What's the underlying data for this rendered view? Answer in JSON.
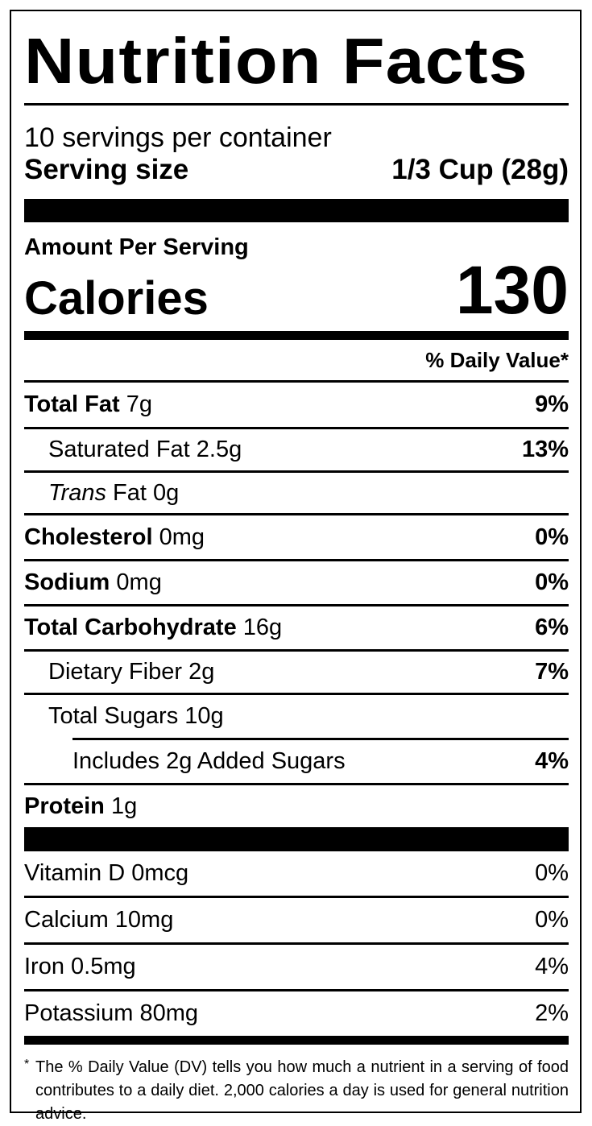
{
  "title": "Nutrition Facts",
  "servings_per_container": "10 servings per container",
  "serving_size": {
    "label": "Serving size",
    "value": "1/3 Cup (28g)"
  },
  "amount_per_serving": "Amount Per Serving",
  "calories": {
    "label": "Calories",
    "value": "130"
  },
  "daily_value_header": "% Daily Value*",
  "nutrients": [
    {
      "name": "Total Fat",
      "amount": "7g",
      "dv": "9%"
    },
    {
      "name": "Saturated Fat",
      "amount": "2.5g",
      "dv": "13%"
    },
    {
      "name": "Trans",
      "name_suffix": "Fat",
      "amount": "0g",
      "dv": ""
    },
    {
      "name": "Cholesterol",
      "amount": "0mg",
      "dv": "0%"
    },
    {
      "name": "Sodium",
      "amount": "0mg",
      "dv": "0%"
    },
    {
      "name": "Total Carbohydrate",
      "amount": "16g",
      "dv": "6%"
    },
    {
      "name": "Dietary Fiber",
      "amount": "2g",
      "dv": "7%"
    },
    {
      "name": "Total Sugars",
      "amount": "10g",
      "dv": ""
    },
    {
      "name": "Includes 2g Added Sugars",
      "dv": "4%"
    },
    {
      "name": "Protein",
      "amount": "1g",
      "dv": ""
    }
  ],
  "vitamins": [
    {
      "label": "Vitamin D 0mcg",
      "dv": "0%"
    },
    {
      "label": "Calcium 10mg",
      "dv": "0%"
    },
    {
      "label": "Iron 0.5mg",
      "dv": "4%"
    },
    {
      "label": "Potassium 80mg",
      "dv": "2%"
    }
  ],
  "footnote": {
    "marker": "*",
    "text": "The % Daily Value (DV) tells you how much a nutrient in a serving of food contributes to a daily diet. 2,000 calories a day is used for general nutrition advice."
  }
}
